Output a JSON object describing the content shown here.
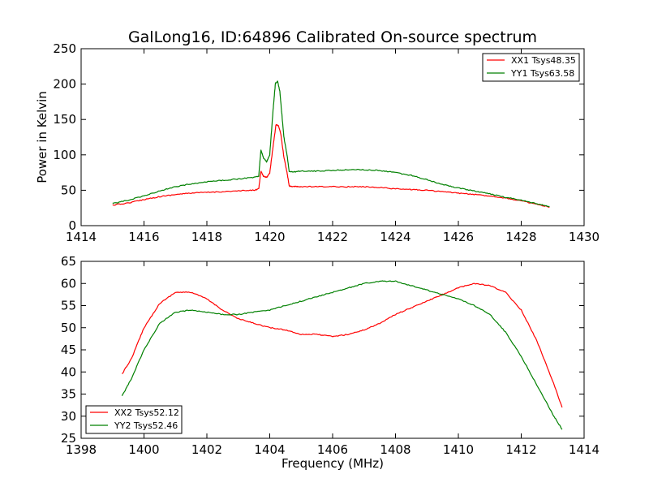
{
  "chart_data": [
    {
      "type": "line",
      "title": "GalLong16, ID:64896 Calibrated On-source spectrum",
      "xlabel": "",
      "ylabel": "Power in Kelvin",
      "xlim": [
        1414,
        1430
      ],
      "ylim": [
        0,
        250
      ],
      "x_ticks": [
        "1414",
        "1416",
        "1418",
        "1420",
        "1422",
        "1424",
        "1426",
        "1428",
        "1430"
      ],
      "y_ticks": [
        "0",
        "50",
        "100",
        "150",
        "200",
        "250"
      ],
      "legend_position": "top-right",
      "series": [
        {
          "name": "XX1 Tsys48.35",
          "color": "#ff0000",
          "points": [
            [
              1415,
              29
            ],
            [
              1415.5,
              32
            ],
            [
              1416,
              37
            ],
            [
              1416.5,
              41
            ],
            [
              1417,
              44
            ],
            [
              1417.5,
              46
            ],
            [
              1418,
              47
            ],
            [
              1418.5,
              48
            ],
            [
              1419,
              49
            ],
            [
              1419.5,
              50
            ],
            [
              1419.65,
              52
            ],
            [
              1419.72,
              77
            ],
            [
              1419.8,
              70
            ],
            [
              1419.9,
              68
            ],
            [
              1420.0,
              74
            ],
            [
              1420.1,
              110
            ],
            [
              1420.2,
              143
            ],
            [
              1420.28,
              141
            ],
            [
              1420.35,
              130
            ],
            [
              1420.45,
              97
            ],
            [
              1420.55,
              75
            ],
            [
              1420.62,
              56
            ],
            [
              1420.8,
              55
            ],
            [
              1421,
              55
            ],
            [
              1421.5,
              55
            ],
            [
              1422,
              55
            ],
            [
              1422.5,
              55
            ],
            [
              1423,
              55
            ],
            [
              1423.5,
              54
            ],
            [
              1424,
              52
            ],
            [
              1424.5,
              51
            ],
            [
              1425,
              50
            ],
            [
              1425.5,
              48
            ],
            [
              1426,
              46
            ],
            [
              1426.5,
              44
            ],
            [
              1427,
              42
            ],
            [
              1427.5,
              39
            ],
            [
              1428,
              35
            ],
            [
              1428.5,
              30
            ],
            [
              1428.9,
              26
            ]
          ]
        },
        {
          "name": "YY1 Tsys63.58",
          "color": "#008000",
          "points": [
            [
              1415,
              31
            ],
            [
              1415.5,
              36
            ],
            [
              1416,
              42
            ],
            [
              1416.5,
              49
            ],
            [
              1417,
              55
            ],
            [
              1417.5,
              59
            ],
            [
              1418,
              62
            ],
            [
              1418.5,
              64
            ],
            [
              1419,
              66
            ],
            [
              1419.5,
              68
            ],
            [
              1419.65,
              70
            ],
            [
              1419.72,
              107
            ],
            [
              1419.8,
              96
            ],
            [
              1419.9,
              90
            ],
            [
              1420.0,
              100
            ],
            [
              1420.1,
              160
            ],
            [
              1420.18,
              201
            ],
            [
              1420.25,
              204
            ],
            [
              1420.32,
              190
            ],
            [
              1420.38,
              160
            ],
            [
              1420.45,
              125
            ],
            [
              1420.55,
              100
            ],
            [
              1420.62,
              76
            ],
            [
              1420.8,
              76
            ],
            [
              1421,
              77
            ],
            [
              1421.5,
              77
            ],
            [
              1422,
              78
            ],
            [
              1422.5,
              79
            ],
            [
              1423,
              79
            ],
            [
              1423.5,
              78
            ],
            [
              1424,
              75
            ],
            [
              1424.5,
              71
            ],
            [
              1425,
              65
            ],
            [
              1425.5,
              58
            ],
            [
              1426,
              53
            ],
            [
              1426.5,
              49
            ],
            [
              1427,
              45
            ],
            [
              1427.5,
              40
            ],
            [
              1428,
              36
            ],
            [
              1428.5,
              31
            ],
            [
              1428.9,
              27
            ]
          ]
        }
      ]
    },
    {
      "type": "line",
      "title": "",
      "xlabel": "Frequency (MHz)",
      "ylabel": "",
      "xlim": [
        1398,
        1414
      ],
      "ylim": [
        25,
        65
      ],
      "x_ticks": [
        "1398",
        "1400",
        "1402",
        "1404",
        "1406",
        "1408",
        "1410",
        "1412",
        "1414"
      ],
      "y_ticks": [
        "25",
        "30",
        "35",
        "40",
        "45",
        "50",
        "55",
        "60",
        "65"
      ],
      "legend_position": "bottom-left",
      "series": [
        {
          "name": "XX2 Tsys52.12",
          "color": "#ff0000",
          "points": [
            [
              1399.3,
              39.5
            ],
            [
              1399.6,
              43
            ],
            [
              1400,
              50
            ],
            [
              1400.5,
              55.5
            ],
            [
              1401,
              58
            ],
            [
              1401.5,
              58
            ],
            [
              1402,
              56.5
            ],
            [
              1402.5,
              54
            ],
            [
              1403,
              52
            ],
            [
              1403.5,
              51
            ],
            [
              1404,
              50
            ],
            [
              1404.5,
              49.5
            ],
            [
              1405,
              48.5
            ],
            [
              1405.5,
              48.5
            ],
            [
              1406,
              48
            ],
            [
              1406.5,
              48.5
            ],
            [
              1407,
              49.5
            ],
            [
              1407.5,
              51
            ],
            [
              1408,
              53
            ],
            [
              1408.5,
              54.5
            ],
            [
              1409,
              56
            ],
            [
              1409.5,
              57.5
            ],
            [
              1410,
              59
            ],
            [
              1410.5,
              60
            ],
            [
              1411,
              59.5
            ],
            [
              1411.5,
              58
            ],
            [
              1412,
              54
            ],
            [
              1412.5,
              47
            ],
            [
              1413,
              38
            ],
            [
              1413.3,
              32
            ]
          ]
        },
        {
          "name": "YY2 Tsys52.46",
          "color": "#008000",
          "points": [
            [
              1399.3,
              34.5
            ],
            [
              1399.6,
              38.5
            ],
            [
              1400,
              45
            ],
            [
              1400.5,
              51
            ],
            [
              1401,
              53.5
            ],
            [
              1401.5,
              54
            ],
            [
              1402,
              53.5
            ],
            [
              1402.5,
              53
            ],
            [
              1403,
              53
            ],
            [
              1403.5,
              53.5
            ],
            [
              1404,
              54
            ],
            [
              1404.5,
              55
            ],
            [
              1405,
              56
            ],
            [
              1405.5,
              57
            ],
            [
              1406,
              58
            ],
            [
              1406.5,
              59
            ],
            [
              1407,
              60
            ],
            [
              1407.5,
              60.5
            ],
            [
              1408,
              60.5
            ],
            [
              1408.5,
              59.5
            ],
            [
              1409,
              58.5
            ],
            [
              1409.5,
              57.5
            ],
            [
              1410,
              56.5
            ],
            [
              1410.5,
              55
            ],
            [
              1411,
              53
            ],
            [
              1411.5,
              49
            ],
            [
              1412,
              43.5
            ],
            [
              1412.5,
              37
            ],
            [
              1413,
              30.5
            ],
            [
              1413.3,
              27
            ]
          ]
        }
      ]
    }
  ]
}
